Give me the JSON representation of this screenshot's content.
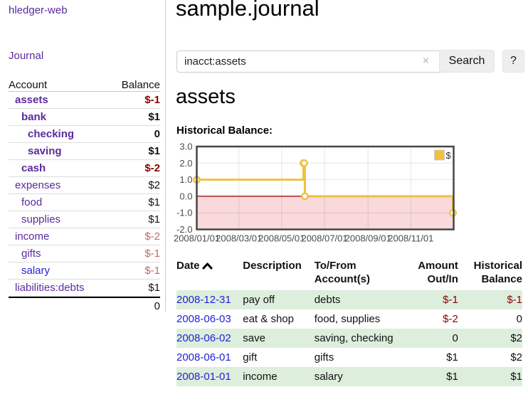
{
  "app": {
    "brand": "hledger-web",
    "nav_journal": "Journal"
  },
  "sidebar": {
    "header": {
      "account": "Account",
      "balance": "Balance"
    },
    "accounts": [
      {
        "name": "assets",
        "balance": "$-1"
      },
      {
        "name": "bank",
        "balance": "$1"
      },
      {
        "name": "checking",
        "balance": "0"
      },
      {
        "name": "saving",
        "balance": "$1"
      },
      {
        "name": "cash",
        "balance": "$-2"
      },
      {
        "name": "expenses",
        "balance": "$2"
      },
      {
        "name": "food",
        "balance": "$1"
      },
      {
        "name": "supplies",
        "balance": "$1"
      },
      {
        "name": "income",
        "balance": "$-2"
      },
      {
        "name": "gifts",
        "balance": "$-1"
      },
      {
        "name": "salary",
        "balance": "$-1"
      },
      {
        "name": "liabilities:debts",
        "balance": "$1"
      }
    ],
    "total": "0"
  },
  "main": {
    "title": "sample.journal",
    "search": {
      "value": "inacct:assets",
      "clear_icon": "×",
      "button_label": "Search",
      "help_label": "?"
    },
    "account_heading": "assets",
    "chart_label": "Historical Balance:"
  },
  "chart_data": {
    "type": "line",
    "step": true,
    "title": "Historical Balance of assets",
    "series": [
      {
        "name": "$",
        "color": "#edc240",
        "points": [
          [
            "2008-01-01",
            1
          ],
          [
            "2008-06-01",
            2
          ],
          [
            "2008-06-02",
            2
          ],
          [
            "2008-06-03",
            0
          ],
          [
            "2008-12-31",
            -1
          ]
        ]
      }
    ],
    "xlim": [
      "2008-01-01",
      "2009-01-01"
    ],
    "ylim": [
      -2,
      3
    ],
    "x_ticks": [
      {
        "label": "2008/01/01",
        "date": "2008-01-01"
      },
      {
        "label": "2008/03/01",
        "date": "2008-03-01"
      },
      {
        "label": "2008/05/01",
        "date": "2008-05-01"
      },
      {
        "label": "2008/07/01",
        "date": "2008-07-01"
      },
      {
        "label": "2008/09/01",
        "date": "2008-09-01"
      },
      {
        "label": "2008/11/01",
        "date": "2008-11-01"
      }
    ],
    "y_ticks": [
      {
        "label": "3.0",
        "value": 3
      },
      {
        "label": "2.0",
        "value": 2
      },
      {
        "label": "1.0",
        "value": 1
      },
      {
        "label": "0.0",
        "value": 0
      },
      {
        "label": "-1.0",
        "value": -1
      },
      {
        "label": "-2.0",
        "value": -2
      }
    ],
    "grid": true,
    "legend": {
      "label": "$",
      "position": "top-right"
    },
    "colors": {
      "line": "#edc240",
      "negative_fill": "#f9d9d9",
      "zero_line": "#8b0000",
      "plot_border": "#454545",
      "grid_line": "rgba(0,0,0,0.10)",
      "tick_text": "#4b4b4b"
    }
  },
  "register": {
    "headers": {
      "date": "Date",
      "description": "Description",
      "tofrom_line1": "To/From",
      "tofrom_line2": "Account(s)",
      "amount_line1": "Amount",
      "amount_line2": "Out/In",
      "balance_line1": "Historical",
      "balance_line2": "Balance"
    },
    "rows": [
      {
        "date": "2008-12-31",
        "description": "pay off",
        "tofrom": "debts",
        "amount": "$-1",
        "balance": "$-1"
      },
      {
        "date": "2008-06-03",
        "description": "eat & shop",
        "tofrom": "food, supplies",
        "amount": "$-2",
        "balance": "0"
      },
      {
        "date": "2008-06-02",
        "description": "save",
        "tofrom": "saving, checking",
        "amount": "0",
        "balance": "$2"
      },
      {
        "date": "2008-06-01",
        "description": "gift",
        "tofrom": "gifts",
        "amount": "$1",
        "balance": "$2"
      },
      {
        "date": "2008-01-01",
        "description": "income",
        "tofrom": "salary",
        "amount": "$1",
        "balance": "$1"
      }
    ]
  }
}
